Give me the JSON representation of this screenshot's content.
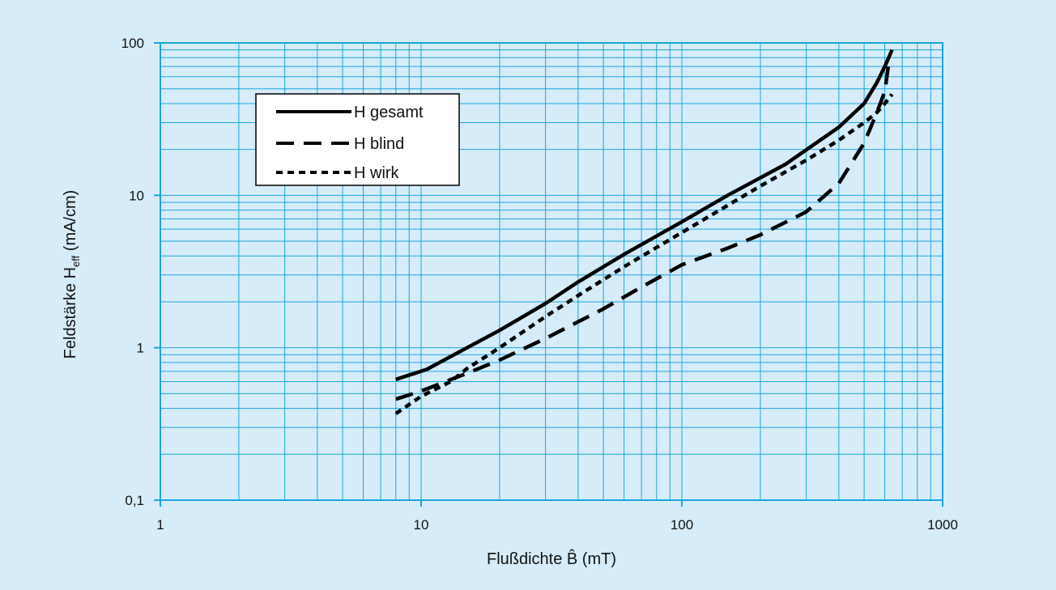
{
  "chart_data": {
    "type": "line",
    "title": "",
    "xlabel": "Flußdichte B̂ (mT)",
    "ylabel": "Feldstärke H",
    "ylabel_sub": "eff",
    "ylabel_unit": " (mA/cm)",
    "x_scale": "log",
    "y_scale": "log",
    "xlim": [
      1,
      1000
    ],
    "ylim": [
      0.1,
      100
    ],
    "x_tick_values": [
      1,
      10,
      100,
      1000
    ],
    "x_tick_labels": [
      "1",
      "10",
      "100",
      "1000"
    ],
    "y_tick_values": [
      0.1,
      1,
      10,
      100
    ],
    "y_tick_labels": [
      "0,1",
      "1",
      "10",
      "100"
    ],
    "grid": true,
    "legend_position": "top-left",
    "colors": {
      "background": "#d6ecf8",
      "grid": "#1aa6de",
      "line": "#000000"
    },
    "series": [
      {
        "name": "H gesamt",
        "style": "solid",
        "x": [
          8,
          10.5,
          15,
          20,
          30,
          40,
          60,
          100,
          150,
          250,
          400,
          500,
          560,
          600,
          640
        ],
        "y": [
          0.62,
          0.72,
          1.0,
          1.3,
          1.95,
          2.7,
          4.1,
          6.7,
          10,
          16,
          28,
          40,
          55,
          70,
          90
        ]
      },
      {
        "name": "H blind",
        "style": "dashed",
        "x": [
          8,
          10,
          15,
          20,
          30,
          50,
          70,
          100,
          150,
          200,
          300,
          400,
          500,
          560,
          600,
          620
        ],
        "y": [
          0.46,
          0.52,
          0.68,
          0.83,
          1.15,
          1.8,
          2.5,
          3.5,
          4.5,
          5.5,
          7.8,
          12,
          22,
          35,
          48,
          72
        ]
      },
      {
        "name": "H wirk",
        "style": "dotted",
        "x": [
          8,
          10,
          13,
          15,
          20,
          30,
          40,
          60,
          100,
          150,
          200,
          300,
          400,
          500,
          560,
          600,
          640
        ],
        "y": [
          0.37,
          0.48,
          0.6,
          0.73,
          1.0,
          1.6,
          2.2,
          3.4,
          5.7,
          8.6,
          11.5,
          17,
          23,
          30,
          35,
          40,
          46
        ]
      }
    ]
  }
}
